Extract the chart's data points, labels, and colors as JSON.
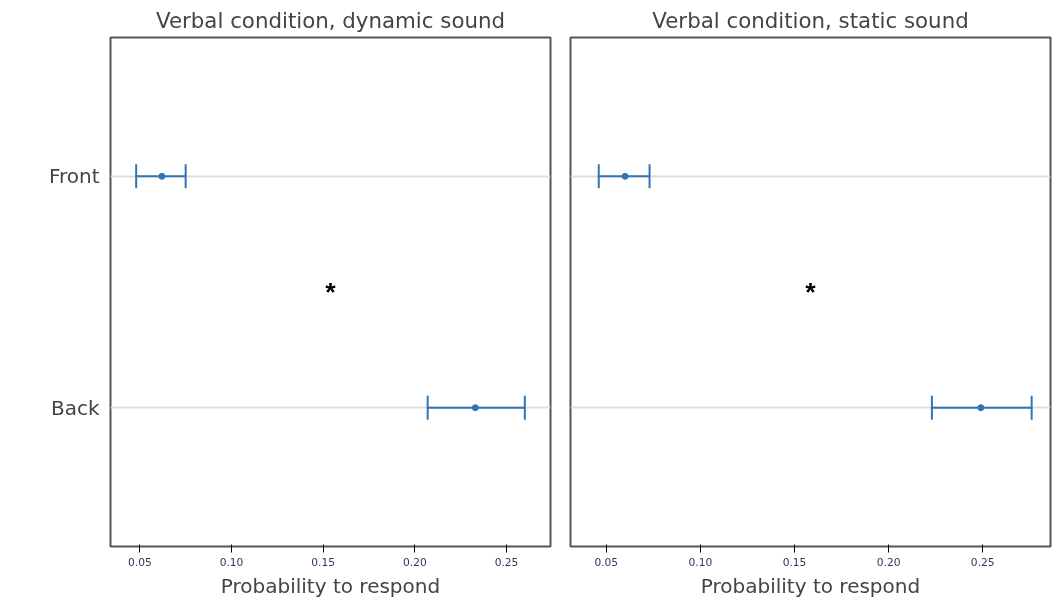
{
  "chart_data": [
    {
      "type": "scatter",
      "title": "Verbal condition, dynamic sound",
      "xlabel": "Probability to respond",
      "categories": [
        "Front",
        "Back"
      ],
      "orientation": "horizontal",
      "marker": "circle",
      "grid": "y",
      "xlim": [
        0.034,
        0.274
      ],
      "xticks": [
        {
          "value": 0.05,
          "label": "0.05"
        },
        {
          "value": 0.1,
          "label": "0.10"
        },
        {
          "value": 0.15,
          "label": "0.15"
        },
        {
          "value": 0.2,
          "label": "0.20"
        },
        {
          "value": 0.25,
          "label": "0.25"
        }
      ],
      "series": [
        {
          "color": "#2e75b6",
          "values": [
            0.062,
            0.233
          ],
          "errors": [
            [
              0.048,
              0.075
            ],
            [
              0.207,
              0.26
            ]
          ]
        }
      ],
      "annotations": [
        "*"
      ]
    },
    {
      "type": "scatter",
      "title": "Verbal condition, static sound",
      "xlabel": "Probability to respond",
      "categories": [
        null,
        null
      ],
      "orientation": "horizontal",
      "marker": "circle",
      "grid": "y",
      "xlim": [
        0.031,
        0.286
      ],
      "xticks": [
        {
          "value": 0.05,
          "label": "0.05"
        },
        {
          "value": 0.1,
          "label": "0.10"
        },
        {
          "value": 0.15,
          "label": "0.15"
        },
        {
          "value": 0.2,
          "label": "0.20"
        },
        {
          "value": 0.25,
          "label": "0.25"
        }
      ],
      "series": [
        {
          "color": "#2e75b6",
          "values": [
            0.06,
            0.249
          ],
          "errors": [
            [
              0.046,
              0.073
            ],
            [
              0.223,
              0.276
            ]
          ]
        }
      ],
      "annotations": [
        "*"
      ]
    }
  ]
}
